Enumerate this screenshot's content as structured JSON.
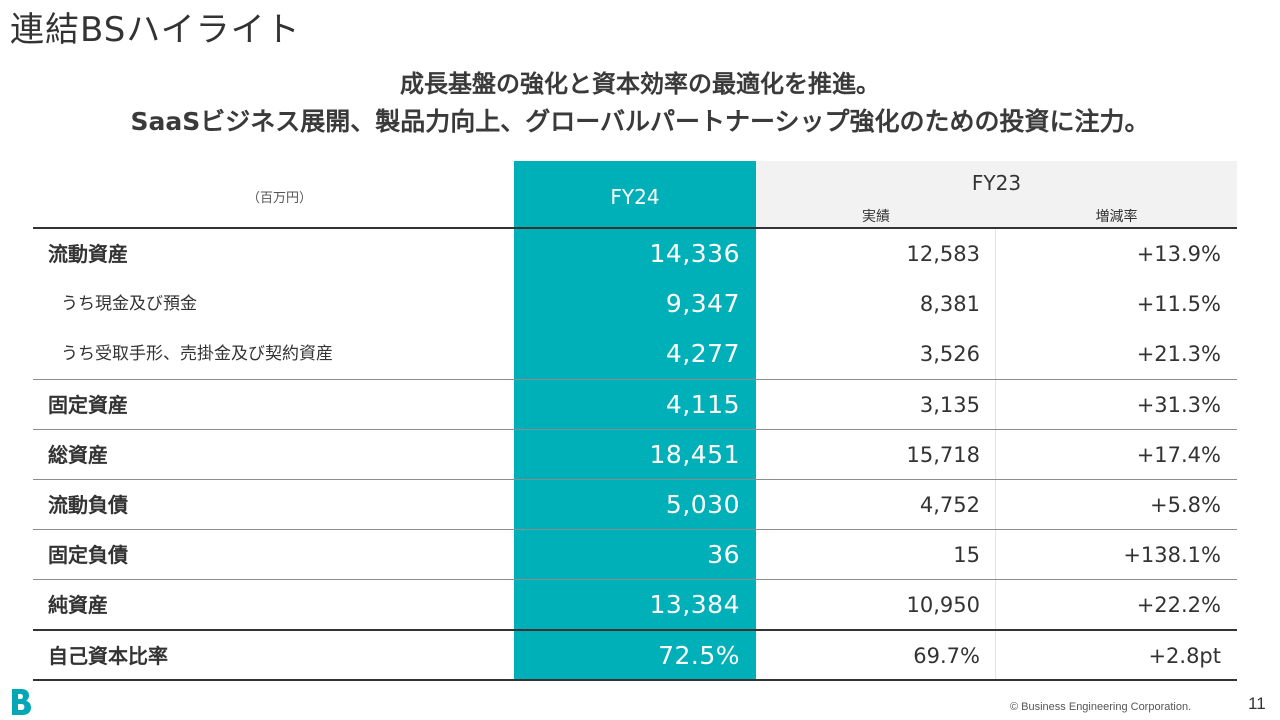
{
  "title": "連結BSハイライト",
  "subtitle_line1": "成長基盤の強化と資本効率の最適化を推進。",
  "subtitle_line2": "SaaSビジネス展開、製品力向上、グローバルパートナーシップ強化のための投資に注力。",
  "table": {
    "unit": "（百万円）",
    "col_fy24": "FY24",
    "col_fy23": "FY23",
    "col_fy23_actual": "実績",
    "col_fy23_rate": "増減率",
    "rows": [
      {
        "label": "流動資産",
        "fy24": "14,336",
        "fy23": "12,583",
        "rate": "+13.9%"
      },
      {
        "label": "うち現金及び預金",
        "fy24": "9,347",
        "fy23": "8,381",
        "rate": "+11.5%"
      },
      {
        "label": "うち受取手形、売掛金及び契約資産",
        "fy24": "4,277",
        "fy23": "3,526",
        "rate": "+21.3%"
      },
      {
        "label": "固定資産",
        "fy24": "4,115",
        "fy23": "3,135",
        "rate": "+31.3%"
      },
      {
        "label": "総資産",
        "fy24": "18,451",
        "fy23": "15,718",
        "rate": "+17.4%"
      },
      {
        "label": "流動負債",
        "fy24": "5,030",
        "fy23": "4,752",
        "rate": "+5.8%"
      },
      {
        "label": "固定負債",
        "fy24": "36",
        "fy23": "15",
        "rate": "+138.1%"
      },
      {
        "label": "純資産",
        "fy24": "13,384",
        "fy23": "10,950",
        "rate": "+22.2%"
      },
      {
        "label": "自己資本比率",
        "fy24": "72.5%",
        "fy23": "69.7%",
        "rate": "+2.8pt"
      }
    ]
  },
  "footer": {
    "copyright": "© Business Engineering Corporation.",
    "page_number": "11"
  },
  "colors": {
    "accent": "#00b0b9",
    "header_gray": "#f2f2f2",
    "logo": "#00a7b5"
  }
}
